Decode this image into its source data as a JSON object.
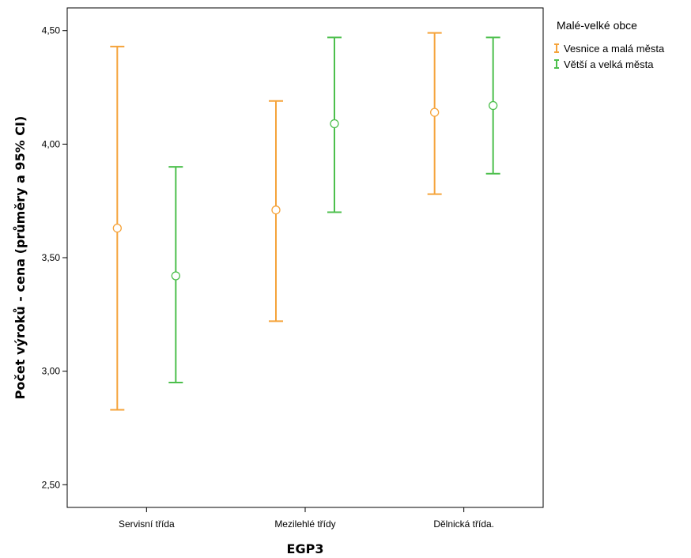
{
  "chart_data": {
    "type": "errorbar",
    "xlabel": "EGP3",
    "ylabel": "Počet výroků - cena (průměry a 95% CI)",
    "categories": [
      "Servisní třída",
      "Mezilehlé třídy",
      "Dělnická třída."
    ],
    "ylim": [
      2.4,
      4.6
    ],
    "yticks": [
      2.5,
      3.0,
      3.5,
      4.0,
      4.5
    ],
    "ytick_labels": [
      "2,50",
      "3,00",
      "3,50",
      "4,00",
      "4,50"
    ],
    "grid": false,
    "legend": {
      "title": "Malé-velké obce",
      "placement": "top-right-outside"
    },
    "series": [
      {
        "name": "Vesnice a malá města",
        "color": "#f5a33a",
        "mean": [
          3.63,
          3.71,
          4.14
        ],
        "lower": [
          2.83,
          3.22,
          3.78
        ],
        "upper": [
          4.43,
          4.19,
          4.49
        ]
      },
      {
        "name": "Větší a velká města",
        "color": "#4cbf4c",
        "mean": [
          3.42,
          4.09,
          4.17
        ],
        "lower": [
          2.95,
          3.7,
          3.87
        ],
        "upper": [
          3.9,
          4.47,
          4.47
        ]
      }
    ]
  }
}
